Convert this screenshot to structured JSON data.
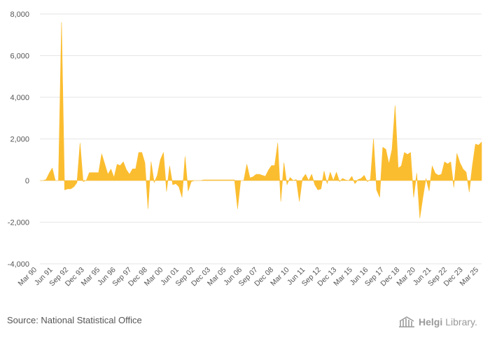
{
  "chart_data": {
    "type": "area",
    "title": "",
    "xlabel": "",
    "ylabel": "",
    "ylim": [
      -4000,
      8000
    ],
    "yticks": [
      -4000,
      -2000,
      0,
      2000,
      4000,
      6000,
      8000
    ],
    "ytick_labels": [
      "-4,000",
      "-2,000",
      "0",
      "2,000",
      "4,000",
      "6,000",
      "8,000"
    ],
    "x_start": "Mar 90",
    "x_end": "Mar 25",
    "xtick_labels": [
      "Mar 90",
      "Jun 91",
      "Sep 92",
      "Dec 93",
      "Mar 95",
      "Jun 96",
      "Sep 97",
      "Dec 98",
      "Mar 00",
      "Jun 01",
      "Sep 02",
      "Dec 03",
      "Mar 05",
      "Jun 06",
      "Sep 07",
      "Dec 08",
      "Mar 10",
      "Jun 11",
      "Sep 12",
      "Dec 13",
      "Mar 15",
      "Jun 16",
      "Sep 17",
      "Dec 18",
      "Mar 20",
      "Jun 21",
      "Sep 22",
      "Dec 23",
      "Mar 25"
    ],
    "series": [
      {
        "name": "Value",
        "color": "#fbbd30",
        "values": [
          0,
          0,
          50,
          350,
          600,
          0,
          0,
          7600,
          -450,
          -400,
          -400,
          -300,
          -100,
          1800,
          -50,
          0,
          380,
          380,
          380,
          380,
          1280,
          800,
          300,
          550,
          150,
          780,
          720,
          900,
          520,
          300,
          560,
          560,
          1350,
          1350,
          850,
          -1350,
          900,
          -100,
          250,
          1000,
          1350,
          -520,
          700,
          -200,
          -150,
          -300,
          -800,
          1150,
          -500,
          -50,
          0,
          0,
          0,
          30,
          30,
          30,
          30,
          30,
          30,
          30,
          30,
          30,
          30,
          30,
          -1350,
          0,
          0,
          780,
          130,
          180,
          300,
          300,
          250,
          200,
          500,
          720,
          720,
          1800,
          -1000,
          850,
          -200,
          150,
          0,
          50,
          -1000,
          100,
          300,
          0,
          300,
          -200,
          -450,
          -400,
          450,
          -150,
          400,
          0,
          400,
          -50,
          100,
          30,
          0,
          200,
          -150,
          50,
          100,
          250,
          -50,
          50,
          2000,
          -450,
          -800,
          1600,
          1500,
          800,
          1500,
          3600,
          600,
          700,
          1350,
          1250,
          1350,
          -800,
          350,
          -1800,
          -800,
          100,
          -500,
          700,
          350,
          250,
          300,
          900,
          800,
          900,
          -320,
          1300,
          850,
          550,
          400,
          -550,
          700,
          1750,
          1700,
          1850
        ]
      }
    ]
  },
  "footer": {
    "source": "Source: National Statistical Office",
    "logo_brand": "Helgi",
    "logo_suffix": "Library."
  }
}
